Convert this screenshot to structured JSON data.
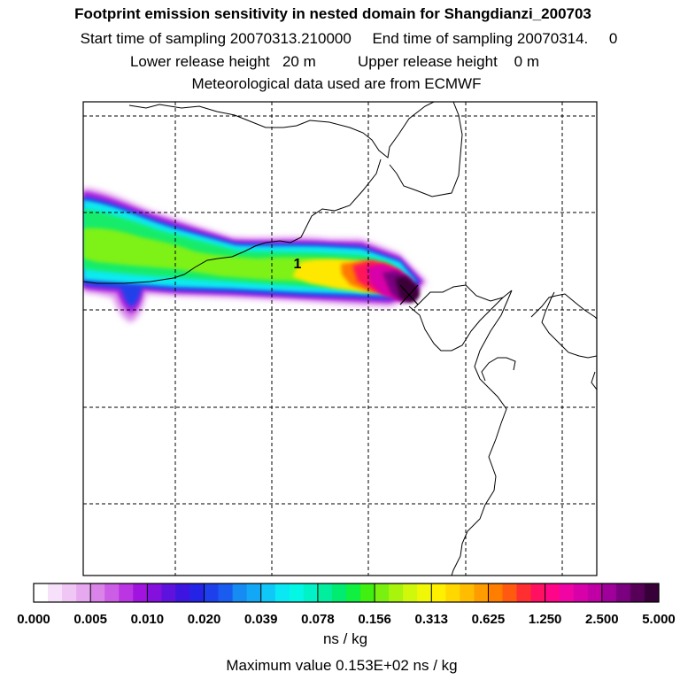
{
  "header": {
    "title": "Footprint emission sensitivity in nested domain for Shangdianzi_200703",
    "sampling_line": "Start time of sampling 20070313.210000     End time of sampling 20070314.     0",
    "release_line": "Lower release height   20 m          Upper release height    0 m",
    "met_line": "Meteorological data used are from ECMWF"
  },
  "map": {
    "station_marker_label": "1"
  },
  "chart_data": {
    "type": "heatmap",
    "title": "Footprint emission sensitivity in nested domain for Shangdianzi_200703",
    "colorbar": {
      "tick_labels": [
        "0.000",
        "0.005",
        "0.010",
        "0.020",
        "0.039",
        "0.078",
        "0.156",
        "0.313",
        "0.625",
        "1.250",
        "2.500",
        "5.000"
      ],
      "tick_values": [
        0.0,
        0.005,
        0.01,
        0.02,
        0.039,
        0.078,
        0.156,
        0.313,
        0.625,
        1.25,
        2.5,
        5.0
      ],
      "colors": [
        "#ffffff",
        "#f7e0f9",
        "#efc6f4",
        "#e6a8ef",
        "#da84ea",
        "#cc5ee6",
        "#bb36e2",
        "#a114e0",
        "#8410dd",
        "#5e12dd",
        "#3c16e0",
        "#2424e6",
        "#1e40ec",
        "#1a5cf0",
        "#168cf2",
        "#12a8f6",
        "#10c8f8",
        "#0ae8f4",
        "#04f6e4",
        "#00f2c6",
        "#00ee9e",
        "#00ec70",
        "#10f040",
        "#40f010",
        "#7af010",
        "#a8f40c",
        "#d0f80a",
        "#f0f808",
        "#fff000",
        "#ffd800",
        "#ffbc00",
        "#ff9c00",
        "#ff7e00",
        "#ff5a10",
        "#ff2e30",
        "#ff1060",
        "#ff0688",
        "#f004a4",
        "#d800a8",
        "#c000a4",
        "#a0009a",
        "#7a0080",
        "#560058",
        "#380038"
      ],
      "unit": "ns / kg"
    },
    "max_value_text": "Maximum value  0.153E+02 ns / kg",
    "max_value": 15.3
  },
  "footer": {
    "unit_label": "ns / kg",
    "max_label": "Maximum value  0.153E+02 ns / kg"
  }
}
